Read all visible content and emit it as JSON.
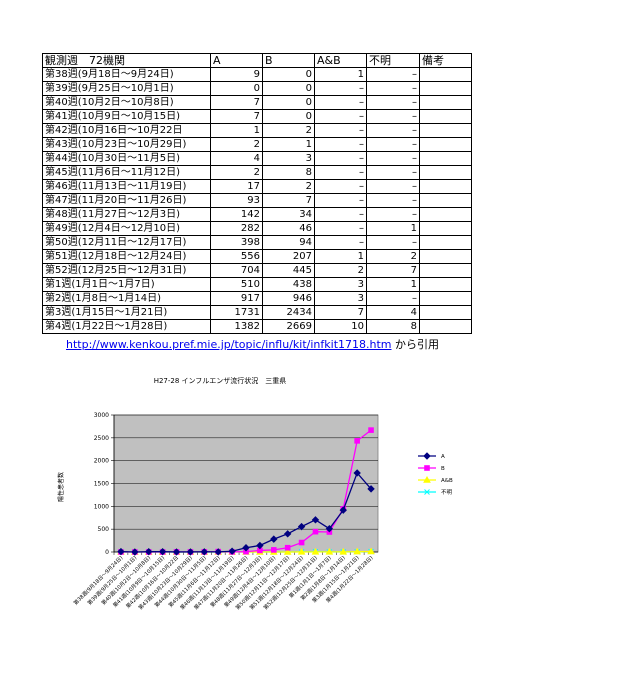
{
  "table": {
    "headers": [
      "観測週　72機関",
      "A",
      "B",
      "A&B",
      "不明",
      "備考"
    ],
    "rows": [
      [
        "第38週(9月18日～9月24日)",
        "9",
        "0",
        "1",
        "–",
        ""
      ],
      [
        "第39週(9月25日～10月1日)",
        "0",
        "0",
        "–",
        "–",
        ""
      ],
      [
        "第40週(10月2日～10月8日)",
        "7",
        "0",
        "–",
        "–",
        ""
      ],
      [
        "第41週(10月9日～10月15日)",
        "7",
        "0",
        "–",
        "–",
        ""
      ],
      [
        "第42週(10月16日～10月22日",
        "1",
        "2",
        "–",
        "–",
        ""
      ],
      [
        "第43週(10月23日～10月29日)",
        "2",
        "1",
        "–",
        "–",
        ""
      ],
      [
        "第44週(10月30日～11月5日)",
        "4",
        "3",
        "–",
        "–",
        ""
      ],
      [
        "第45週(11月6日～11月12日)",
        "2",
        "8",
        "–",
        "–",
        ""
      ],
      [
        "第46週(11月13日～11月19日)",
        "17",
        "2",
        "–",
        "–",
        ""
      ],
      [
        "第47週(11月20日～11月26日)",
        "93",
        "7",
        "–",
        "–",
        ""
      ],
      [
        "第48週(11月27日～12月3日)",
        "142",
        "34",
        "–",
        "–",
        ""
      ],
      [
        "第49週(12月4日～12月10日)",
        "282",
        "46",
        "–",
        "1",
        ""
      ],
      [
        "第50週(12月11日～12月17日)",
        "398",
        "94",
        "–",
        "–",
        ""
      ],
      [
        "第51週(12月18日～12月24日)",
        "556",
        "207",
        "1",
        "2",
        ""
      ],
      [
        "第52週(12月25日～12月31日)",
        "704",
        "445",
        "2",
        "7",
        ""
      ],
      [
        "第1週(1月1日～1月7日)",
        "510",
        "438",
        "3",
        "1",
        ""
      ],
      [
        "第2週(1月8日～1月14日)",
        "917",
        "946",
        "3",
        "–",
        ""
      ],
      [
        "第3週(1月15日～1月21日)",
        "1731",
        "2434",
        "7",
        "4",
        ""
      ],
      [
        "第4週(1月22日～1月28日)",
        "1382",
        "2669",
        "10",
        "8",
        ""
      ]
    ]
  },
  "source": {
    "url": "http://www.kenkou.pref.mie.jp/topic/influ/kit/infkit1718.htm",
    "suffix": "から引用"
  },
  "colors": {
    "A": "#000080",
    "B": "#ff00ff",
    "AB": "#ffff00",
    "unknown": "#00ffff",
    "plot_bg": "#c0c0c0"
  },
  "chart_data": {
    "type": "line",
    "title": "H27-28 インフルエンザ流行状況　三重県",
    "ylabel": "陽性患者数",
    "xlabel": "",
    "ylim": [
      0,
      3000
    ],
    "yticks": [
      0,
      500,
      1000,
      1500,
      2000,
      2500,
      3000
    ],
    "grid": true,
    "legend_position": "right",
    "categories": [
      "第38週(9月18日～9月24日)",
      "第39週(9月25日～10月1日)",
      "第40週(10月2日～10月8日)",
      "第41週(10月9日～10月15日)",
      "第42週(10月16日～10月22日",
      "第43週(10月23日～10月29日)",
      "第44週(10月30日～11月5日)",
      "第45週(11月6日～11月12日)",
      "第46週(11月13日～11月19日)",
      "第47週(11月20日～11月26日)",
      "第48週(11月27日～12月3日)",
      "第49週(12月4日～12月10日)",
      "第50週(12月11日～12月17日)",
      "第51週(12月18日～12月24日)",
      "第52週(12月25日～12月31日)",
      "第1週(1月1日～1月7日)",
      "第2週(1月8日～1月14日)",
      "第3週(1月15日～1月21日)",
      "第4週(1月22日～1月28日)"
    ],
    "series": [
      {
        "name": "A",
        "color": "#000080",
        "marker": "diamond",
        "values": [
          9,
          0,
          7,
          7,
          1,
          2,
          4,
          2,
          17,
          93,
          142,
          282,
          398,
          556,
          704,
          510,
          917,
          1731,
          1382
        ]
      },
      {
        "name": "B",
        "color": "#ff00ff",
        "marker": "square",
        "values": [
          0,
          0,
          0,
          0,
          2,
          1,
          3,
          8,
          2,
          7,
          34,
          46,
          94,
          207,
          445,
          438,
          946,
          2434,
          2669
        ]
      },
      {
        "name": "A&B",
        "color": "#ffff00",
        "marker": "triangle",
        "values": [
          1,
          0,
          0,
          0,
          0,
          0,
          0,
          0,
          0,
          0,
          0,
          0,
          0,
          1,
          2,
          3,
          3,
          7,
          10
        ]
      },
      {
        "name": "不明",
        "color": "#00ffff",
        "marker": "x",
        "values": [
          0,
          0,
          0,
          0,
          0,
          0,
          0,
          0,
          0,
          0,
          0,
          1,
          0,
          2,
          7,
          1,
          0,
          4,
          8
        ]
      }
    ]
  }
}
